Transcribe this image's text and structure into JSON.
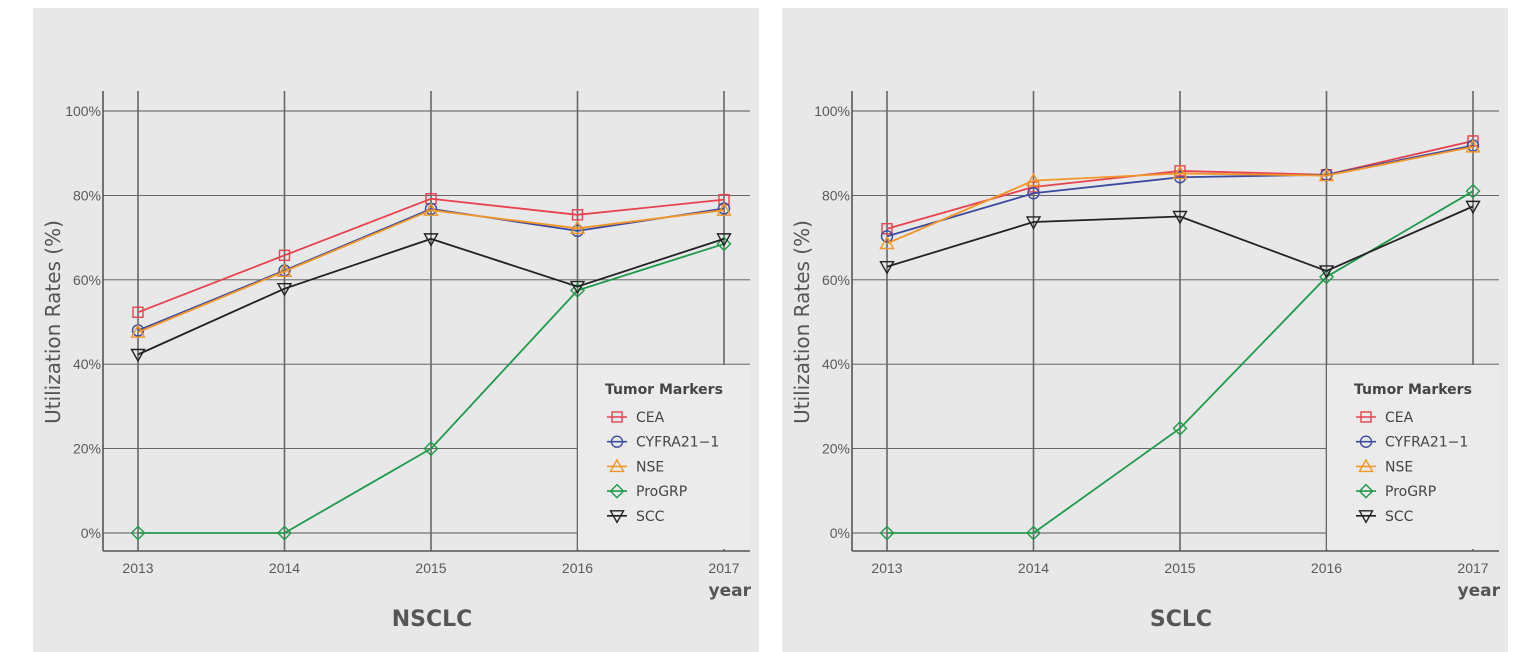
{
  "colors": {
    "CEA": "#e8424e",
    "CYFRA21-1": "#3b4aa0",
    "NSE": "#f2962a",
    "ProGRP": "#1f9a4a",
    "SCC": "#222222"
  },
  "chart_data": [
    {
      "type": "line",
      "title": "NSCLC",
      "xlabel": "year",
      "ylabel": "Utilization Rates (%)",
      "x": [
        2013,
        2014,
        2015,
        2016,
        2017
      ],
      "x_ticks": [
        "2013",
        "2014",
        "2015",
        "2016",
        "2017"
      ],
      "y_ticks": [
        "0%",
        "20%",
        "40%",
        "60%",
        "80%",
        "100%"
      ],
      "ylim": [
        0,
        100
      ],
      "grid": true,
      "legend": {
        "title": "Tumor Markers",
        "position": "bottom-right",
        "entries": [
          "CEA",
          "CYFRA21−1",
          "NSE",
          "ProGRP",
          "SCC"
        ]
      },
      "series": [
        {
          "name": "CEA",
          "marker": "square",
          "values": [
            52.3,
            65.8,
            79.2,
            75.4,
            79.0
          ]
        },
        {
          "name": "CYFRA21−1",
          "marker": "circle",
          "values": [
            48.0,
            62.2,
            76.8,
            71.6,
            76.9
          ]
        },
        {
          "name": "NSE",
          "marker": "triangle-up",
          "values": [
            47.6,
            62.0,
            76.5,
            72.2,
            76.5
          ]
        },
        {
          "name": "ProGRP",
          "marker": "diamond",
          "values": [
            0.0,
            0.0,
            20.0,
            57.5,
            68.5
          ]
        },
        {
          "name": "SCC",
          "marker": "triangle-down",
          "values": [
            42.3,
            57.9,
            69.7,
            58.4,
            69.7
          ]
        }
      ]
    },
    {
      "type": "line",
      "title": "SCLC",
      "xlabel": "year",
      "ylabel": "Utilization Rates (%)",
      "x": [
        2013,
        2014,
        2015,
        2016,
        2017
      ],
      "x_ticks": [
        "2013",
        "2014",
        "2015",
        "2016",
        "2017"
      ],
      "y_ticks": [
        "0%",
        "20%",
        "40%",
        "60%",
        "80%",
        "100%"
      ],
      "ylim": [
        0,
        100
      ],
      "grid": true,
      "legend": {
        "title": "Tumor Markers",
        "position": "bottom-right",
        "entries": [
          "CEA",
          "CYFRA21−1",
          "NSE",
          "ProGRP",
          "SCC"
        ]
      },
      "series": [
        {
          "name": "CEA",
          "marker": "square",
          "values": [
            72.1,
            82.0,
            85.8,
            84.9,
            92.9
          ]
        },
        {
          "name": "CYFRA21−1",
          "marker": "circle",
          "values": [
            70.3,
            80.5,
            84.3,
            84.9,
            91.8
          ]
        },
        {
          "name": "NSE",
          "marker": "triangle-up",
          "values": [
            68.6,
            83.5,
            85.2,
            84.7,
            91.5
          ]
        },
        {
          "name": "ProGRP",
          "marker": "diamond",
          "values": [
            0.0,
            0.0,
            24.8,
            60.7,
            81.0
          ]
        },
        {
          "name": "SCC",
          "marker": "triangle-down",
          "values": [
            63.1,
            73.7,
            75.0,
            62.1,
            77.4
          ]
        }
      ]
    }
  ]
}
